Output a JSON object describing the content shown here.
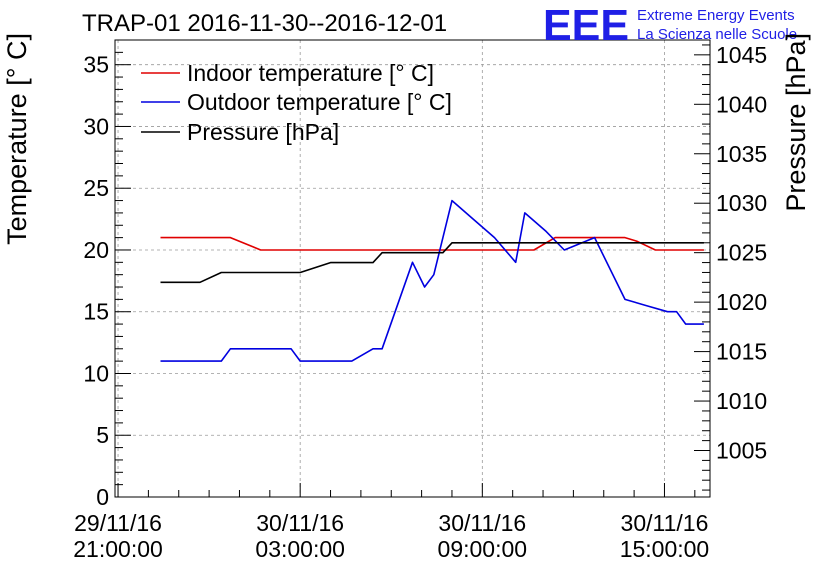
{
  "chart_data": {
    "type": "line",
    "title": "TRAP-01 2016-11-30--2016-12-01",
    "logo": {
      "text": "EEE",
      "line1": "Extreme Energy Events",
      "line2": "La Scienza nelle Scuole",
      "color": "#1f1fe6"
    },
    "ylabel": "Temperature [° C]",
    "y2label": "Pressure [hPa]",
    "ylim": [
      0,
      37
    ],
    "y2lim": [
      1000.3,
      1046.5
    ],
    "xlim": [
      -0.1,
      19.5
    ],
    "yticks": [
      "0",
      "5",
      "10",
      "15",
      "20",
      "25",
      "30",
      "35"
    ],
    "y2ticks": [
      "1005",
      "1010",
      "1015",
      "1020",
      "1025",
      "1030",
      "1035",
      "1040",
      "1045"
    ],
    "xticks": [
      {
        "hour": 0,
        "line1": "29/11/16",
        "line2": "21:00:00"
      },
      {
        "hour": 6,
        "line1": "30/11/16",
        "line2": "03:00:00"
      },
      {
        "hour": 12,
        "line1": "30/11/16",
        "line2": "09:00:00"
      },
      {
        "hour": 18,
        "line1": "30/11/16",
        "line2": "15:00:00"
      }
    ],
    "grid": true,
    "legend_position": "top-left",
    "series": [
      {
        "name": "Indoor temperature [° C]",
        "axis": "left",
        "color": "#e00000",
        "x": [
          1.4,
          3.7,
          4.7,
          11.0,
          12.4,
          13.7,
          14.4,
          15.7,
          16.7,
          17.1,
          17.7,
          18.7,
          19.3
        ],
        "y": [
          21.0,
          21.0,
          20.0,
          20.0,
          20.0,
          20.0,
          21.0,
          21.0,
          21.0,
          20.7,
          20.0,
          20.0,
          20.0
        ]
      },
      {
        "name": "Outdoor temperature [° C]",
        "axis": "left",
        "color": "#0000e0",
        "x": [
          1.4,
          3.4,
          3.7,
          5.7,
          6.0,
          7.7,
          8.4,
          8.7,
          9.7,
          10.1,
          10.4,
          11.0,
          11.7,
          12.4,
          13.1,
          13.4,
          14.1,
          14.7,
          15.7,
          16.7,
          17.4,
          18.1,
          18.4,
          18.7,
          19.3
        ],
        "y": [
          11.0,
          11.0,
          12.0,
          12.0,
          11.0,
          11.0,
          12.0,
          12.0,
          19.0,
          17.0,
          18.0,
          24.0,
          22.5,
          21.0,
          19.0,
          23.0,
          21.5,
          20.0,
          21.0,
          16.0,
          15.5,
          15.0,
          15.0,
          14.0,
          14.0
        ]
      },
      {
        "name": "Pressure [hPa]",
        "axis": "right",
        "color": "#000000",
        "x": [
          1.4,
          2.7,
          3.4,
          6.0,
          7.0,
          8.4,
          8.7,
          10.7,
          11.0,
          12.7,
          14.0,
          19.3
        ],
        "y": [
          1022.0,
          1022.0,
          1023.0,
          1023.0,
          1024.0,
          1024.0,
          1025.0,
          1025.0,
          1026.0,
          1026.0,
          1026.0,
          1026.0
        ]
      }
    ]
  }
}
